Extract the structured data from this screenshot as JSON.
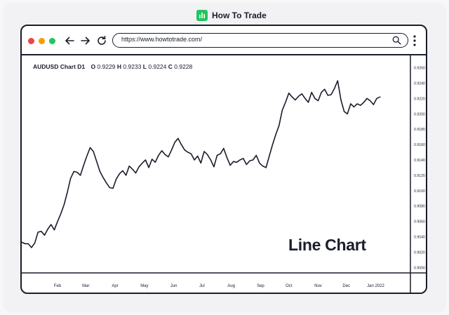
{
  "brand": {
    "name": "How To Trade",
    "color": "#22c55e"
  },
  "browser": {
    "url": "https://www.howtotrade.com/",
    "window_dots": [
      "#ef4444",
      "#f59e0b",
      "#22c55e"
    ],
    "icons": [
      "back-arrow-icon",
      "forward-arrow-icon",
      "reload-icon",
      "search-icon",
      "more-vertical-icon"
    ]
  },
  "chart_header": {
    "symbol": "AUDUSD Chart D1",
    "o_label": "O",
    "o_value": "0.9229",
    "h_label": "H",
    "h_value": "0.9233",
    "l_label": "L",
    "l_value": "0.9224",
    "c_label": "C",
    "c_value": "0.9228"
  },
  "chart_title": "Line Chart",
  "chart_data": {
    "type": "line",
    "series": [
      {
        "x": [
          0,
          3,
          6,
          9,
          12,
          15,
          18,
          21,
          24,
          27,
          30,
          33,
          36,
          39,
          42,
          45,
          48,
          51,
          54,
          57,
          60,
          63,
          66,
          69,
          72,
          75,
          78,
          81,
          84,
          87,
          90,
          93,
          96,
          99,
          102,
          105,
          108,
          111,
          114,
          117,
          120,
          123,
          126,
          129,
          132,
          135,
          138,
          141,
          144,
          147,
          150,
          153,
          156,
          159,
          162,
          165,
          168,
          171,
          174,
          177,
          180,
          183,
          186,
          189,
          192,
          195,
          198,
          201,
          204,
          207,
          210,
          213,
          216,
          219,
          222,
          225,
          228,
          231,
          234,
          237,
          240,
          243,
          246,
          249,
          252,
          255,
          258,
          261,
          264,
          267,
          270,
          273,
          276,
          279,
          282,
          285,
          288,
          291,
          294,
          297,
          300,
          303,
          306,
          309,
          312,
          315,
          318,
          321,
          324,
          327,
          330
        ],
        "values": [
          0.9033,
          0.9031,
          0.9031,
          0.9026,
          0.9032,
          0.9046,
          0.9047,
          0.9042,
          0.905,
          0.9056,
          0.9049,
          0.906,
          0.907,
          0.9082,
          0.9098,
          0.9116,
          0.9125,
          0.9124,
          0.912,
          0.9133,
          0.9145,
          0.9156,
          0.9151,
          0.9138,
          0.9125,
          0.9117,
          0.911,
          0.9104,
          0.9103,
          0.9115,
          0.9122,
          0.9126,
          0.912,
          0.9132,
          0.9128,
          0.9123,
          0.9131,
          0.9136,
          0.914,
          0.913,
          0.9141,
          0.9137,
          0.9146,
          0.9152,
          0.9147,
          0.9144,
          0.9153,
          0.9163,
          0.9168,
          0.916,
          0.9153,
          0.915,
          0.9148,
          0.914,
          0.9145,
          0.9136,
          0.9151,
          0.9147,
          0.914,
          0.9131,
          0.9146,
          0.9148,
          0.9155,
          0.9143,
          0.9133,
          0.9138,
          0.9137,
          0.914,
          0.9142,
          0.9134,
          0.9139,
          0.914,
          0.9146,
          0.9136,
          0.9132,
          0.913,
          0.9145,
          0.916,
          0.9173,
          0.9185,
          0.9205,
          0.9215,
          0.9227,
          0.9222,
          0.9218,
          0.9223,
          0.9226,
          0.922,
          0.9215,
          0.9228,
          0.922,
          0.9217,
          0.9228,
          0.9232,
          0.9224,
          0.9225,
          0.9233,
          0.9243,
          0.9218,
          0.9203,
          0.92,
          0.9213,
          0.9209,
          0.9213,
          0.9211,
          0.9215,
          0.922,
          0.9217,
          0.9212,
          0.922,
          0.9222
        ]
      }
    ],
    "x_tick_labels": [
      "Feb",
      "Mar",
      "Apr",
      "May",
      "Jun",
      "Jul",
      "Aug",
      "Sep",
      "Oct",
      "Nov",
      "Dec",
      "Jan 2022"
    ],
    "x_tick_positions": [
      33,
      59,
      86,
      113,
      140,
      166,
      193,
      220,
      246,
      273,
      299,
      326
    ],
    "y_tick_labels": [
      "0.9260",
      "0.9240",
      "0.9220",
      "0.9200",
      "0.9180",
      "0.9160",
      "0.9140",
      "0.9120",
      "0.9100",
      "0.9080",
      "0.9060",
      "0.9040",
      "0.9020",
      "0.9000"
    ],
    "y_tick_values": [
      0.926,
      0.924,
      0.922,
      0.92,
      0.918,
      0.916,
      0.914,
      0.912,
      0.91,
      0.908,
      0.906,
      0.904,
      0.902,
      0.9
    ],
    "ylim": [
      0.8993,
      0.9276
    ],
    "xlim": [
      0,
      358
    ],
    "line_color": "#1a1d2b",
    "grid": false
  }
}
